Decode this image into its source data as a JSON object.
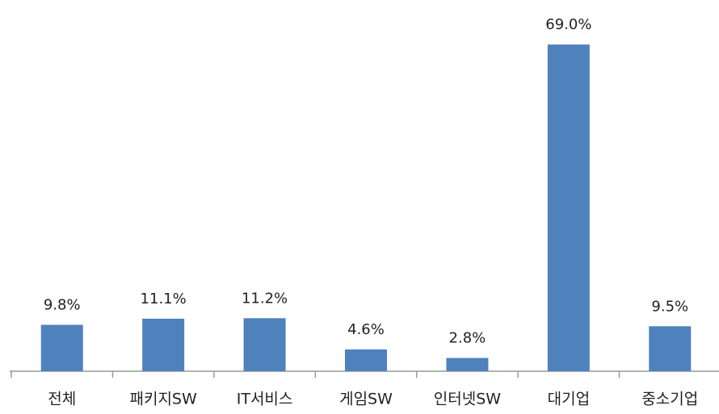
{
  "chart_data": {
    "type": "bar",
    "categories": [
      "전체",
      "패키지SW",
      "IT서비스",
      "게임SW",
      "인터넷SW",
      "대기업",
      "중소기업"
    ],
    "values": [
      9.8,
      11.1,
      11.2,
      4.6,
      2.8,
      69.0,
      9.5
    ],
    "value_labels": [
      "9.8%",
      "11.1%",
      "11.2%",
      "4.6%",
      "2.8%",
      "69.0%",
      "9.5%"
    ],
    "color": "#4f81bd",
    "ylim": [
      0,
      75
    ]
  }
}
